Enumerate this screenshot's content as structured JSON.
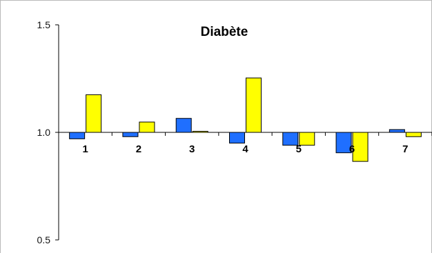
{
  "chart_data": {
    "type": "bar",
    "title": "Diabète",
    "xlabel": "",
    "ylabel": "",
    "categories": [
      "1",
      "2",
      "3",
      "4",
      "5",
      "6",
      "7"
    ],
    "series": [
      {
        "color": "#1f6fff",
        "values": [
          0.97,
          0.98,
          1.065,
          0.95,
          0.94,
          0.905,
          1.013
        ]
      },
      {
        "color": "#ffff00",
        "values": [
          1.175,
          1.048,
          1.005,
          1.253,
          0.94,
          0.865,
          0.98
        ]
      }
    ],
    "baseline": 1.0,
    "ylim": [
      0.5,
      1.5
    ],
    "yticks": [
      "0.5",
      "1.0",
      "1.5"
    ],
    "legend": "none",
    "grid": false
  }
}
